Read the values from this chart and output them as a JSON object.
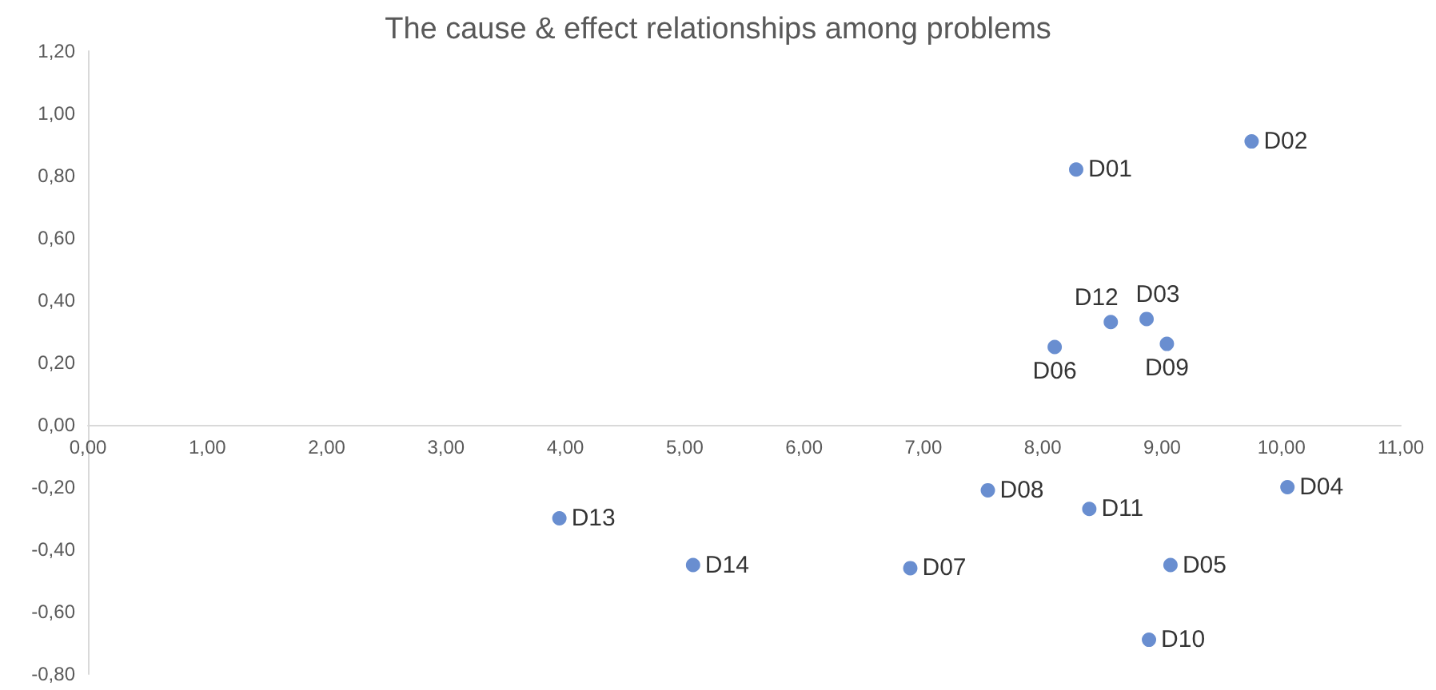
{
  "chart_data": {
    "type": "scatter",
    "title": "The cause & effect relationships among problems",
    "marker": "circle",
    "grid": false,
    "legend": false,
    "xlim": [
      0,
      11
    ],
    "xticks": [
      {
        "value": 0,
        "label": "0,00"
      },
      {
        "value": 1,
        "label": "1,00"
      },
      {
        "value": 2,
        "label": "2,00"
      },
      {
        "value": 3,
        "label": "3,00"
      },
      {
        "value": 4,
        "label": "4,00"
      },
      {
        "value": 5,
        "label": "5,00"
      },
      {
        "value": 6,
        "label": "6,00"
      },
      {
        "value": 7,
        "label": "7,00"
      },
      {
        "value": 8,
        "label": "8,00"
      },
      {
        "value": 9,
        "label": "9,00"
      },
      {
        "value": 10,
        "label": "10,00"
      },
      {
        "value": 11,
        "label": "11,00"
      }
    ],
    "ylim": [
      -0.8,
      1.2
    ],
    "yticks": [
      {
        "value": -0.8,
        "label": "-0,80"
      },
      {
        "value": -0.6,
        "label": "-0,60"
      },
      {
        "value": -0.4,
        "label": "-0,40"
      },
      {
        "value": -0.2,
        "label": "-0,20"
      },
      {
        "value": 0,
        "label": "0,00"
      },
      {
        "value": 0.2,
        "label": "0,20"
      },
      {
        "value": 0.4,
        "label": "0,40"
      },
      {
        "value": 0.6,
        "label": "0,60"
      },
      {
        "value": 0.8,
        "label": "0,80"
      },
      {
        "value": 1,
        "label": "1,00"
      },
      {
        "value": 1.2,
        "label": "1,20"
      }
    ],
    "series": [
      {
        "name": "D01",
        "color": "#4472c4",
        "x": [
          8.28
        ],
        "values": [
          0.82
        ]
      },
      {
        "name": "D02",
        "color": "#4472c4",
        "x": [
          9.75
        ],
        "values": [
          0.91
        ]
      },
      {
        "name": "D03",
        "color": "#4472c4",
        "x": [
          8.87
        ],
        "values": [
          0.34
        ]
      },
      {
        "name": "D04",
        "color": "#4472c4",
        "x": [
          10.05
        ],
        "values": [
          -0.2
        ]
      },
      {
        "name": "D05",
        "color": "#4472c4",
        "x": [
          9.07
        ],
        "values": [
          -0.45
        ]
      },
      {
        "name": "D06",
        "color": "#4472c4",
        "x": [
          8.1
        ],
        "values": [
          0.25
        ]
      },
      {
        "name": "D07",
        "color": "#4472c4",
        "x": [
          6.89
        ],
        "values": [
          -0.46
        ]
      },
      {
        "name": "D08",
        "color": "#4472c4",
        "x": [
          7.54
        ],
        "values": [
          -0.21
        ]
      },
      {
        "name": "D09",
        "color": "#4472c4",
        "x": [
          9.04
        ],
        "values": [
          0.26
        ]
      },
      {
        "name": "D10",
        "color": "#4472c4",
        "x": [
          8.89
        ],
        "values": [
          -0.69
        ]
      },
      {
        "name": "D11",
        "color": "#4472c4",
        "x": [
          8.39
        ],
        "values": [
          -0.27
        ]
      },
      {
        "name": "D12",
        "color": "#4472c4",
        "x": [
          8.57
        ],
        "values": [
          0.33
        ]
      },
      {
        "name": "D13",
        "color": "#4472c4",
        "x": [
          3.95
        ],
        "values": [
          -0.3
        ]
      },
      {
        "name": "D14",
        "color": "#4472c4",
        "x": [
          5.07
        ],
        "values": [
          -0.45
        ]
      }
    ]
  }
}
